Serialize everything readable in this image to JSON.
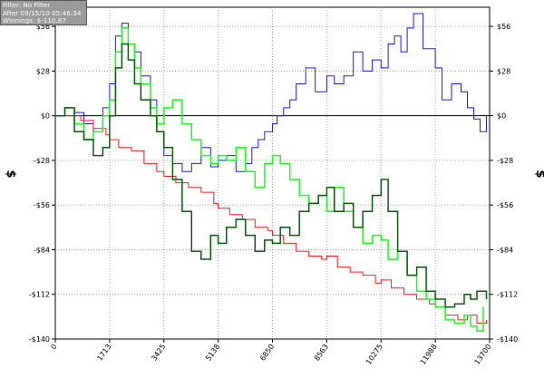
{
  "info_box": {
    "filter": "Filter: No Filter",
    "after": "After 09/15/10 05:46:34",
    "winnings": "Winnings: $-110.87"
  },
  "colors": {
    "blue": "#1a1aff",
    "red": "#ff1a1a",
    "light_green": "#1aff1a",
    "dark_green": "#0a5c0a",
    "zero_line": "#000000",
    "grid": "#aaaaaa"
  },
  "chart_data": {
    "type": "line",
    "title": "",
    "xlabel": "",
    "ylabel": "$",
    "xlim": [
      0,
      13700
    ],
    "ylim": [
      -140,
      68
    ],
    "x_ticks": [
      0,
      1713,
      3425,
      5138,
      6850,
      8563,
      10275,
      11988,
      13700
    ],
    "x_tick_labels": [
      "0",
      "1713",
      "3425",
      "5138",
      "6850",
      "8563",
      "10275",
      "11988",
      "13700"
    ],
    "y_ticks": [
      56,
      28,
      0,
      -28,
      -56,
      -84,
      -112,
      -140
    ],
    "y_tick_labels": [
      "$56",
      "$28",
      "$0",
      "-$28",
      "-$56",
      "-$84",
      "-$112",
      "-$140"
    ],
    "grid": true,
    "series": [
      {
        "color": "#1a1aff",
        "x": [
          0,
          300,
          600,
          900,
          1200,
          1500,
          1713,
          1900,
          2100,
          2300,
          2500,
          2700,
          3000,
          3200,
          3425,
          3700,
          4000,
          4300,
          4600,
          4900,
          5138,
          5400,
          5700,
          6000,
          6200,
          6400,
          6600,
          6850,
          7000,
          7200,
          7400,
          7600,
          7900,
          8200,
          8563,
          8800,
          9100,
          9400,
          9700,
          10000,
          10275,
          10500,
          10700,
          10900,
          11100,
          11300,
          11600,
          11988,
          12200,
          12500,
          12800,
          13000,
          13200,
          13400,
          13600
        ],
        "y": [
          0,
          5,
          2,
          -5,
          -10,
          5,
          20,
          50,
          58,
          45,
          40,
          25,
          10,
          -10,
          -25,
          -30,
          -35,
          -30,
          -20,
          -32,
          -28,
          -25,
          -35,
          -30,
          -20,
          -15,
          -10,
          -5,
          0,
          5,
          10,
          20,
          30,
          15,
          25,
          20,
          25,
          40,
          28,
          35,
          30,
          45,
          50,
          40,
          55,
          64,
          42,
          30,
          10,
          20,
          15,
          5,
          -2,
          -10,
          0
        ]
      },
      {
        "color": "#ff1a1a",
        "x": [
          0,
          400,
          800,
          1200,
          1600,
          1713,
          2000,
          2400,
          2800,
          3200,
          3425,
          3800,
          4200,
          4600,
          5000,
          5138,
          5500,
          5900,
          6300,
          6700,
          6850,
          7200,
          7600,
          8000,
          8400,
          8563,
          8900,
          9300,
          9700,
          10100,
          10275,
          10600,
          11000,
          11400,
          11800,
          11988,
          12300,
          12700,
          13000,
          13300,
          13600
        ],
        "y": [
          0,
          0,
          -3,
          -8,
          -12,
          -15,
          -20,
          -22,
          -30,
          -35,
          -38,
          -42,
          -45,
          -48,
          -55,
          -58,
          -62,
          -65,
          -70,
          -72,
          -75,
          -80,
          -85,
          -88,
          -90,
          -88,
          -95,
          -98,
          -100,
          -105,
          -103,
          -108,
          -112,
          -115,
          -118,
          -120,
          -125,
          -128,
          -125,
          -130,
          -128
        ]
      },
      {
        "color": "#1aff1a",
        "x": [
          0,
          300,
          600,
          900,
          1200,
          1500,
          1713,
          1900,
          2100,
          2300,
          2500,
          2700,
          3000,
          3200,
          3425,
          3700,
          4000,
          4300,
          4600,
          4900,
          5138,
          5400,
          5700,
          6000,
          6300,
          6600,
          6850,
          7100,
          7400,
          7700,
          8000,
          8300,
          8563,
          8800,
          9100,
          9400,
          9700,
          10000,
          10275,
          10500,
          10800,
          11100,
          11400,
          11700,
          11988,
          12300,
          12600,
          12900,
          13100,
          13300,
          13500
        ],
        "y": [
          0,
          5,
          -5,
          -15,
          -10,
          0,
          10,
          40,
          55,
          45,
          30,
          20,
          5,
          -5,
          5,
          10,
          -5,
          -15,
          -25,
          -30,
          -25,
          -28,
          -20,
          -35,
          -45,
          -30,
          -25,
          -30,
          -40,
          -50,
          -55,
          -50,
          -60,
          -45,
          -60,
          -70,
          -80,
          -75,
          -78,
          -90,
          -85,
          -100,
          -110,
          -115,
          -120,
          -128,
          -130,
          -125,
          -132,
          -135,
          -120
        ]
      },
      {
        "color": "#0a5c0a",
        "x": [
          0,
          300,
          600,
          900,
          1200,
          1500,
          1713,
          1900,
          2100,
          2300,
          2500,
          2700,
          3000,
          3200,
          3425,
          3700,
          4000,
          4300,
          4600,
          4900,
          5138,
          5400,
          5700,
          6000,
          6300,
          6600,
          6850,
          7100,
          7400,
          7700,
          8000,
          8300,
          8563,
          8800,
          9100,
          9400,
          9700,
          10000,
          10275,
          10500,
          10800,
          11100,
          11400,
          11700,
          11988,
          12300,
          12600,
          12900,
          13100,
          13300,
          13600
        ],
        "y": [
          0,
          5,
          -10,
          -15,
          -25,
          -20,
          0,
          30,
          45,
          35,
          20,
          10,
          0,
          -10,
          -20,
          -40,
          -60,
          -85,
          -90,
          -75,
          -80,
          -70,
          -65,
          -75,
          -85,
          -78,
          -80,
          -70,
          -75,
          -60,
          -55,
          -50,
          -45,
          -60,
          -55,
          -70,
          -60,
          -50,
          -40,
          -60,
          -85,
          -100,
          -95,
          -110,
          -115,
          -120,
          -118,
          -112,
          -115,
          -110,
          -115
        ]
      }
    ]
  }
}
